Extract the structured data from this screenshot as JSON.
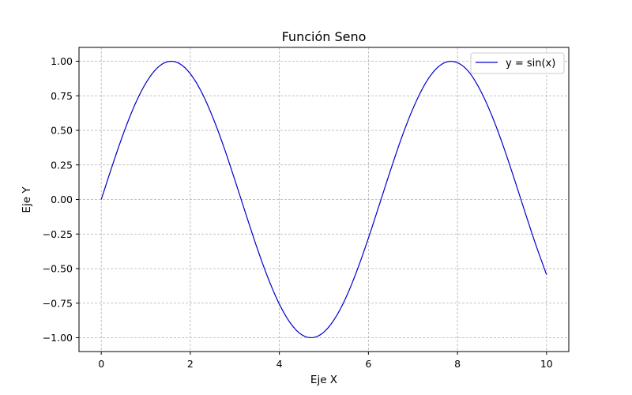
{
  "chart_data": {
    "type": "line",
    "title": "Función Seno",
    "xlabel": "Eje X",
    "ylabel": "Eje Y",
    "xlim": [
      -0.5,
      10.5
    ],
    "ylim": [
      -1.1,
      1.1
    ],
    "grid": true,
    "legend_position": "top-right",
    "x_ticks": [
      0,
      2,
      4,
      6,
      8,
      10
    ],
    "x_tick_labels": [
      "0",
      "2",
      "4",
      "6",
      "8",
      "10"
    ],
    "y_ticks": [
      1.0,
      0.75,
      0.5,
      0.25,
      0.0,
      -0.25,
      -0.5,
      -0.75,
      -1.0
    ],
    "y_tick_labels": [
      "1.00",
      "0.75",
      "0.50",
      "0.25",
      "0.00",
      "−0.25",
      "−0.50",
      "−0.75",
      "−1.00"
    ],
    "series": [
      {
        "name": "y = sin(x)",
        "color": "#0000cc",
        "x": [
          0,
          0.25,
          0.5,
          0.75,
          1,
          1.25,
          1.5,
          1.75,
          2,
          2.25,
          2.5,
          2.75,
          3,
          3.25,
          3.5,
          3.75,
          4,
          4.25,
          4.5,
          4.75,
          5,
          5.25,
          5.5,
          5.75,
          6,
          6.25,
          6.5,
          6.75,
          7,
          7.25,
          7.5,
          7.75,
          8,
          8.25,
          8.5,
          8.75,
          9,
          9.25,
          9.5,
          9.75,
          10
        ],
        "y": [
          0,
          0.247,
          0.479,
          0.682,
          0.841,
          0.949,
          0.997,
          0.984,
          0.909,
          0.778,
          0.598,
          0.382,
          0.141,
          -0.108,
          -0.351,
          -0.572,
          -0.757,
          -0.895,
          -0.978,
          -0.999,
          -0.959,
          -0.859,
          -0.706,
          -0.508,
          -0.279,
          -0.033,
          0.215,
          0.451,
          0.657,
          0.823,
          0.938,
          0.994,
          0.989,
          0.925,
          0.798,
          0.624,
          0.412,
          0.174,
          -0.075,
          -0.319,
          -0.544
        ]
      }
    ]
  }
}
